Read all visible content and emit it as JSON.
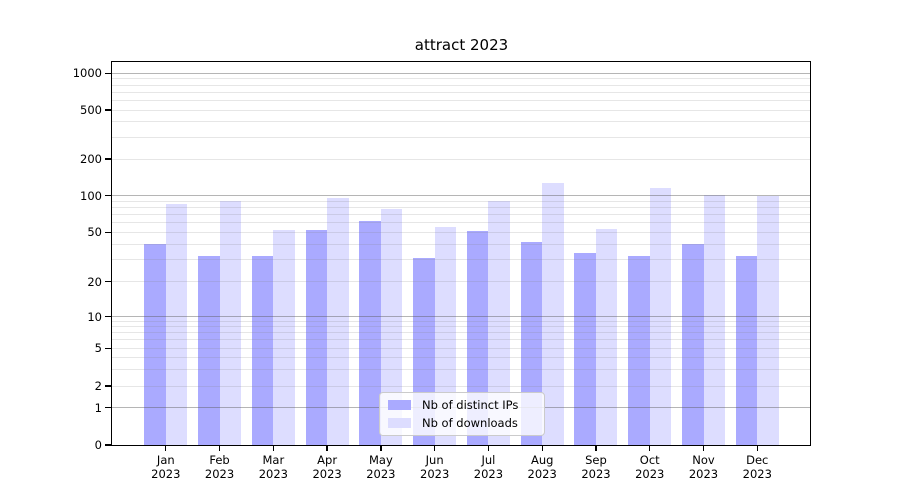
{
  "figure": {
    "title": "attract 2023"
  },
  "chart_data": {
    "type": "bar",
    "title": "attract 2023",
    "categories": [
      "Jan 2023",
      "Feb 2023",
      "Mar 2023",
      "Apr 2023",
      "May 2023",
      "Jun 2023",
      "Jul 2023",
      "Aug 2023",
      "Sep 2023",
      "Oct 2023",
      "Nov 2023",
      "Dec 2023"
    ],
    "series": [
      {
        "name": "Nb of distinct IPs",
        "color": "#aaaaff",
        "values": [
          40,
          32,
          32,
          52,
          62,
          31,
          51,
          42,
          34,
          32,
          40,
          32
        ]
      },
      {
        "name": "Nb of downloads",
        "color": "#ddddff",
        "values": [
          86,
          90,
          52,
          95,
          78,
          55,
          90,
          126,
          53,
          116,
          101,
          99
        ]
      }
    ],
    "yscale": "symlog",
    "ytick_values": [
      0,
      1,
      2,
      5,
      10,
      20,
      50,
      100,
      200,
      500,
      1000
    ],
    "ylim": [
      0,
      1250
    ],
    "grid": "horizontal major and minor gridlines drawn above bars",
    "legend_position": "lower center"
  }
}
